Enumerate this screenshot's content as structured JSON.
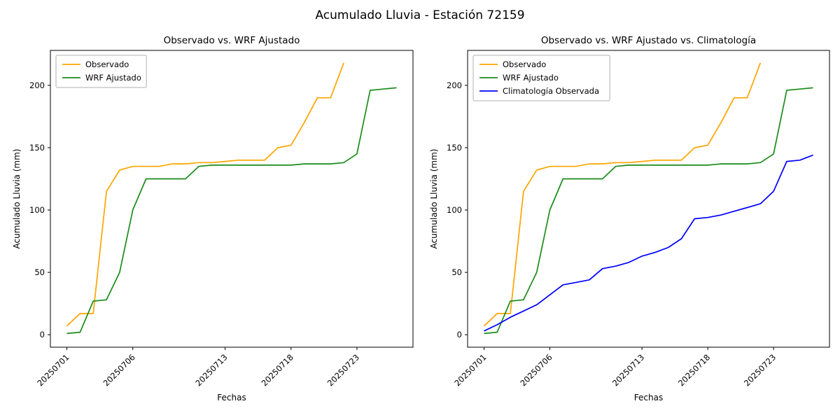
{
  "figure": {
    "suptitle": "Acumulado Lluvia - Estación 72159",
    "background": "#ffffff"
  },
  "chart_data": [
    {
      "type": "line",
      "title": "Observado vs. WRF Ajustado",
      "xlabel": "Fechas",
      "ylabel": "Acumulado Lluvia (mm)",
      "x_start_date": "20250701",
      "x_step": "1 day",
      "xlim": [
        -0.25,
        27.25
      ],
      "ylim": [
        -10,
        228
      ],
      "yticks": [
        0,
        50,
        100,
        150,
        200
      ],
      "xticks": [
        {
          "day": 1,
          "label": "20250701"
        },
        {
          "day": 6,
          "label": "20250706"
        },
        {
          "day": 13,
          "label": "20250713"
        },
        {
          "day": 18,
          "label": "20250718"
        },
        {
          "day": 23,
          "label": "20250723"
        }
      ],
      "grid": false,
      "legend_position": "upper-left",
      "series": [
        {
          "name": "Observado",
          "color": "#ffa500",
          "values": [
            7,
            17,
            17,
            115,
            132,
            135,
            135,
            135,
            137,
            137,
            138,
            138,
            139,
            140,
            140,
            140,
            150,
            152,
            170,
            190,
            190,
            218
          ]
        },
        {
          "name": "WRF Ajustado",
          "color": "#1a8c1a",
          "values": [
            1,
            2,
            27,
            28,
            50,
            100,
            125,
            125,
            125,
            125,
            135,
            136,
            136,
            136,
            136,
            136,
            136,
            136,
            137,
            137,
            137,
            138,
            145,
            196,
            197,
            198
          ]
        }
      ]
    },
    {
      "type": "line",
      "title": "Observado vs. WRF Ajustado vs. Climatología",
      "xlabel": "Fechas",
      "ylabel": "Acumulado Lluvia (mm)",
      "x_start_date": "20250701",
      "x_step": "1 day",
      "xlim": [
        -0.25,
        27.25
      ],
      "ylim": [
        -10,
        228
      ],
      "yticks": [
        0,
        50,
        100,
        150,
        200
      ],
      "xticks": [
        {
          "day": 1,
          "label": "20250701"
        },
        {
          "day": 6,
          "label": "20250706"
        },
        {
          "day": 13,
          "label": "20250713"
        },
        {
          "day": 18,
          "label": "20250718"
        },
        {
          "day": 23,
          "label": "20250723"
        }
      ],
      "grid": false,
      "legend_position": "upper-left",
      "series": [
        {
          "name": "Observado",
          "color": "#ffa500",
          "values": [
            7,
            17,
            17,
            115,
            132,
            135,
            135,
            135,
            137,
            137,
            138,
            138,
            139,
            140,
            140,
            140,
            150,
            152,
            170,
            190,
            190,
            218
          ]
        },
        {
          "name": "WRF Ajustado",
          "color": "#1a8c1a",
          "values": [
            1,
            2,
            27,
            28,
            50,
            100,
            125,
            125,
            125,
            125,
            135,
            136,
            136,
            136,
            136,
            136,
            136,
            136,
            137,
            137,
            137,
            138,
            145,
            196,
            197,
            198
          ]
        },
        {
          "name": "Climatología Observada",
          "color": "#0000ff",
          "values": [
            3,
            8,
            14,
            19,
            24,
            32,
            40,
            42,
            44,
            53,
            55,
            58,
            63,
            66,
            70,
            77,
            93,
            94,
            96,
            99,
            102,
            105,
            115,
            139,
            140,
            144
          ]
        }
      ]
    }
  ]
}
